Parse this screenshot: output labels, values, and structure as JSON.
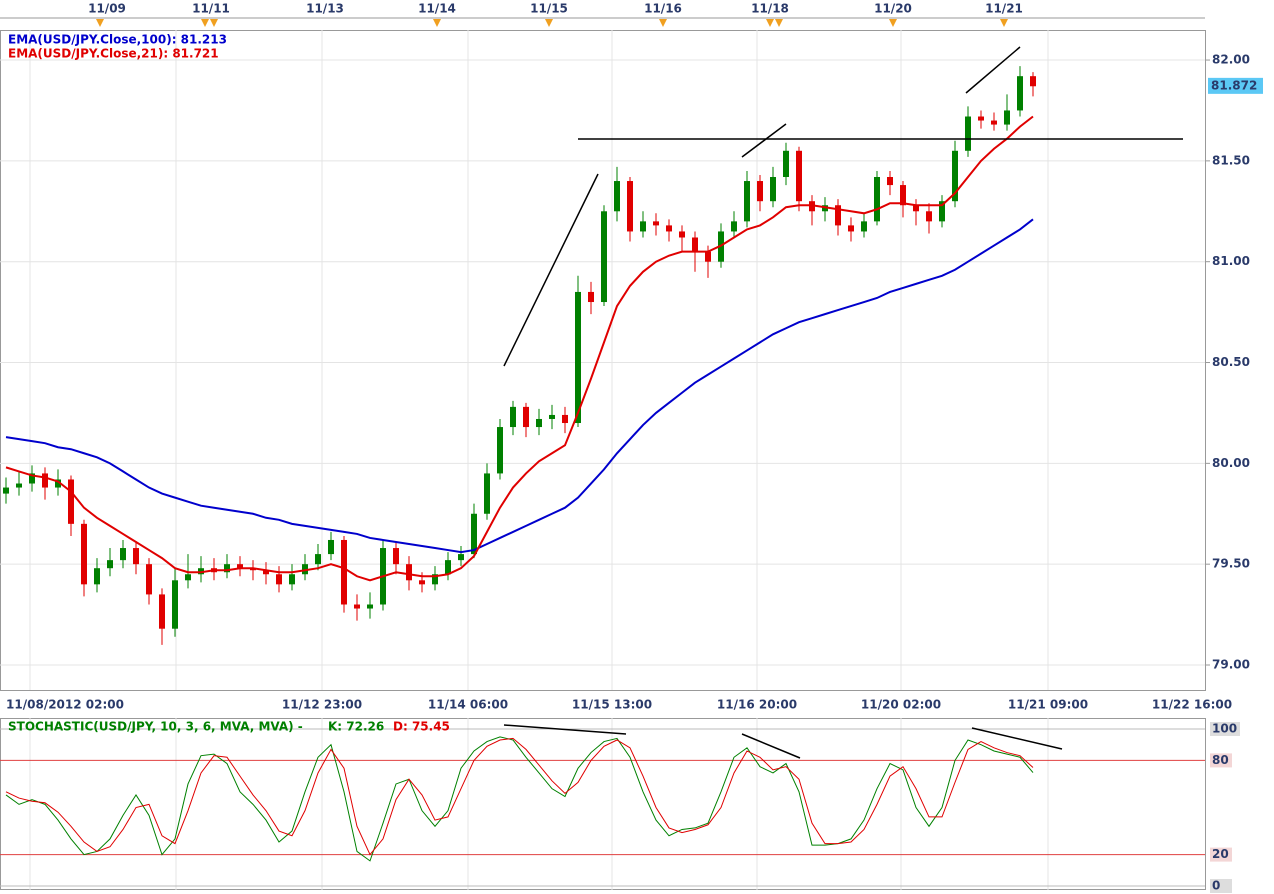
{
  "chart_data": {
    "type": "candlestick",
    "legend": [
      {
        "name": "EMA(USD/JPY.Close,100): 81.213",
        "color": "#0000cc"
      },
      {
        "name": "EMA(USD/JPY.Close,21): 81.721",
        "color": "#e00000"
      }
    ],
    "top_dates": [
      "11/09",
      "11/11",
      "11/13",
      "11/14",
      "11/15",
      "11/16",
      "11/18",
      "11/20",
      "11/21"
    ],
    "x_labels": [
      "11/08/2012 02:00",
      "11/12 23:00",
      "11/14 06:00",
      "11/15 13:00",
      "11/16 20:00",
      "11/20 02:00",
      "11/21 09:00",
      "11/22 16:00"
    ],
    "ylim": [
      78.876,
      82.149
    ],
    "yticks": [
      {
        "value": 79,
        "label": "79.00"
      },
      {
        "value": 79.5,
        "label": "79.50"
      },
      {
        "value": 80,
        "label": "80.00"
      },
      {
        "value": 80.5,
        "label": "80.50"
      },
      {
        "value": 81,
        "label": "81.00"
      },
      {
        "value": 81.5,
        "label": "81.50"
      },
      {
        "value": 82,
        "label": "82.00"
      }
    ],
    "grid": true,
    "last_price": 81.872,
    "up_color": "#008000",
    "down_color": "#e00000",
    "open": [
      79.85,
      79.88,
      79.9,
      79.95,
      79.88,
      79.92,
      79.7,
      79.4,
      79.48,
      79.52,
      79.58,
      79.5,
      79.35,
      79.18,
      79.42,
      79.45,
      79.48,
      79.46,
      79.5,
      79.48,
      79.47,
      79.45,
      79.4,
      79.45,
      79.5,
      79.55,
      79.62,
      79.3,
      79.28,
      79.3,
      79.58,
      79.5,
      79.42,
      79.4,
      79.45,
      79.52,
      79.55,
      79.75,
      79.95,
      80.18,
      80.28,
      80.18,
      80.22,
      80.24,
      80.2,
      80.85,
      80.8,
      81.25,
      81.4,
      81.15,
      81.2,
      81.18,
      81.15,
      81.12,
      81.05,
      81.0,
      81.15,
      81.2,
      81.4,
      81.3,
      81.42,
      81.55,
      81.3,
      81.25,
      81.28,
      81.18,
      81.15,
      81.2,
      81.42,
      81.38,
      81.28,
      81.25,
      81.2,
      81.3,
      81.55,
      81.72,
      81.7,
      81.68,
      81.75,
      81.92
    ],
    "high": [
      79.93,
      79.96,
      79.99,
      79.98,
      79.97,
      79.94,
      79.72,
      79.53,
      79.58,
      79.62,
      79.61,
      79.53,
      79.38,
      79.48,
      79.55,
      79.54,
      79.53,
      79.55,
      79.54,
      79.52,
      79.51,
      79.49,
      79.5,
      79.55,
      79.6,
      79.66,
      79.64,
      79.35,
      79.36,
      79.62,
      79.61,
      79.54,
      79.46,
      79.49,
      79.56,
      79.59,
      79.8,
      80.0,
      80.22,
      80.31,
      80.3,
      80.27,
      80.29,
      80.28,
      80.93,
      80.9,
      81.28,
      81.47,
      81.42,
      81.25,
      81.24,
      81.21,
      81.18,
      81.15,
      81.08,
      81.19,
      81.25,
      81.45,
      81.43,
      81.47,
      81.59,
      81.57,
      81.33,
      81.32,
      81.31,
      81.22,
      81.24,
      81.45,
      81.45,
      81.4,
      81.31,
      81.29,
      81.33,
      81.6,
      81.77,
      81.75,
      81.74,
      81.83,
      81.97,
      81.94
    ],
    "low": [
      79.8,
      79.84,
      79.86,
      79.82,
      79.84,
      79.64,
      79.34,
      79.36,
      79.44,
      79.48,
      79.45,
      79.3,
      79.1,
      79.14,
      79.38,
      79.41,
      79.42,
      79.43,
      79.44,
      79.42,
      79.4,
      79.36,
      79.37,
      79.42,
      79.47,
      79.52,
      79.26,
      79.22,
      79.23,
      79.27,
      79.45,
      79.37,
      79.36,
      79.37,
      79.42,
      79.49,
      79.53,
      79.72,
      79.92,
      80.14,
      80.13,
      80.14,
      80.17,
      80.15,
      80.18,
      80.74,
      80.78,
      81.2,
      81.1,
      81.12,
      81.13,
      81.1,
      81.05,
      80.95,
      80.92,
      80.97,
      81.12,
      81.17,
      81.25,
      81.27,
      81.38,
      81.25,
      81.18,
      81.2,
      81.13,
      81.1,
      81.12,
      81.18,
      81.33,
      81.22,
      81.18,
      81.14,
      81.17,
      81.27,
      81.52,
      81.66,
      81.65,
      81.65,
      81.72,
      81.82
    ],
    "close": [
      79.88,
      79.9,
      79.95,
      79.88,
      79.92,
      79.7,
      79.4,
      79.48,
      79.52,
      79.58,
      79.5,
      79.35,
      79.18,
      79.42,
      79.45,
      79.48,
      79.46,
      79.5,
      79.48,
      79.47,
      79.45,
      79.4,
      79.45,
      79.5,
      79.55,
      79.62,
      79.3,
      79.28,
      79.3,
      79.58,
      79.5,
      79.42,
      79.4,
      79.45,
      79.52,
      79.55,
      79.75,
      79.95,
      80.18,
      80.28,
      80.18,
      80.22,
      80.24,
      80.2,
      80.85,
      80.8,
      81.25,
      81.4,
      81.15,
      81.2,
      81.18,
      81.15,
      81.12,
      81.05,
      81.0,
      81.15,
      81.2,
      81.4,
      81.3,
      81.42,
      81.55,
      81.3,
      81.25,
      81.28,
      81.18,
      81.15,
      81.2,
      81.42,
      81.38,
      81.28,
      81.25,
      81.2,
      81.3,
      81.55,
      81.72,
      81.7,
      81.68,
      81.75,
      81.92,
      81.87
    ],
    "series": [
      {
        "name": "EMA(USD/JPY.Close,100)",
        "color": "#0000cc",
        "values": [
          80.13,
          80.12,
          80.11,
          80.1,
          80.08,
          80.07,
          80.05,
          80.03,
          80.0,
          79.96,
          79.92,
          79.88,
          79.85,
          79.83,
          79.81,
          79.79,
          79.78,
          79.77,
          79.76,
          79.75,
          79.73,
          79.72,
          79.7,
          79.69,
          79.68,
          79.67,
          79.66,
          79.65,
          79.63,
          79.62,
          79.61,
          79.6,
          79.59,
          79.58,
          79.57,
          79.56,
          79.57,
          79.6,
          79.63,
          79.66,
          79.69,
          79.72,
          79.75,
          79.78,
          79.83,
          79.9,
          79.97,
          80.05,
          80.12,
          80.19,
          80.25,
          80.3,
          80.35,
          80.4,
          80.44,
          80.48,
          80.52,
          80.56,
          80.6,
          80.64,
          80.67,
          80.7,
          80.72,
          80.74,
          80.76,
          80.78,
          80.8,
          80.82,
          80.85,
          80.87,
          80.89,
          80.91,
          80.93,
          80.96,
          81.0,
          81.04,
          81.08,
          81.12,
          81.16,
          81.21
        ]
      },
      {
        "name": "EMA(USD/JPY.Close,21)",
        "color": "#e00000",
        "values": [
          79.98,
          79.96,
          79.94,
          79.93,
          79.91,
          79.86,
          79.78,
          79.73,
          79.69,
          79.65,
          79.61,
          79.57,
          79.53,
          79.48,
          79.46,
          79.46,
          79.47,
          79.47,
          79.48,
          79.48,
          79.47,
          79.46,
          79.46,
          79.47,
          79.48,
          79.5,
          79.48,
          79.44,
          79.42,
          79.44,
          79.46,
          79.45,
          79.44,
          79.44,
          79.45,
          79.48,
          79.54,
          79.66,
          79.78,
          79.88,
          79.95,
          80.01,
          80.05,
          80.09,
          80.25,
          80.42,
          80.6,
          80.78,
          80.88,
          80.95,
          81.0,
          81.03,
          81.05,
          81.05,
          81.05,
          81.08,
          81.12,
          81.16,
          81.18,
          81.22,
          81.27,
          81.28,
          81.28,
          81.27,
          81.26,
          81.25,
          81.24,
          81.26,
          81.29,
          81.29,
          81.28,
          81.28,
          81.28,
          81.34,
          81.42,
          81.5,
          81.56,
          81.61,
          81.67,
          81.72
        ]
      }
    ],
    "stochastic": {
      "title": "STOCHASTIC(USD/JPY, 10, 3, 6, MVA, MVA) -",
      "ylim": [
        0,
        100
      ],
      "yticks": [
        0,
        20,
        80,
        100
      ],
      "series": [
        {
          "name": "K: 72.26",
          "color": "#008000",
          "values": [
            58,
            52,
            55,
            52,
            42,
            30,
            20,
            22,
            30,
            45,
            58,
            45,
            20,
            30,
            65,
            83,
            84,
            78,
            60,
            52,
            42,
            28,
            35,
            60,
            82,
            90,
            60,
            22,
            16,
            40,
            65,
            68,
            48,
            38,
            48,
            75,
            86,
            92,
            95,
            93,
            82,
            72,
            62,
            57,
            75,
            85,
            92,
            94,
            82,
            60,
            42,
            32,
            36,
            37,
            40,
            60,
            82,
            88,
            76,
            72,
            78,
            60,
            26,
            26,
            27,
            30,
            42,
            62,
            78,
            74,
            50,
            38,
            50,
            80,
            93,
            90,
            86,
            84,
            82,
            72.26
          ]
        },
        {
          "name": "D: 75.45",
          "color": "#e00000",
          "values": [
            60,
            56,
            54,
            53,
            47,
            38,
            28,
            22,
            25,
            36,
            50,
            52,
            32,
            27,
            48,
            72,
            83,
            82,
            70,
            58,
            48,
            35,
            32,
            48,
            72,
            87,
            75,
            38,
            20,
            30,
            55,
            68,
            58,
            42,
            44,
            62,
            80,
            89,
            93,
            94,
            87,
            77,
            67,
            59,
            66,
            80,
            89,
            93,
            88,
            70,
            50,
            37,
            34,
            36,
            39,
            50,
            72,
            86,
            82,
            74,
            76,
            68,
            40,
            27,
            27,
            28,
            36,
            52,
            70,
            76,
            62,
            44,
            44,
            66,
            87,
            92,
            88,
            85,
            83,
            75.45
          ]
        }
      ]
    }
  }
}
